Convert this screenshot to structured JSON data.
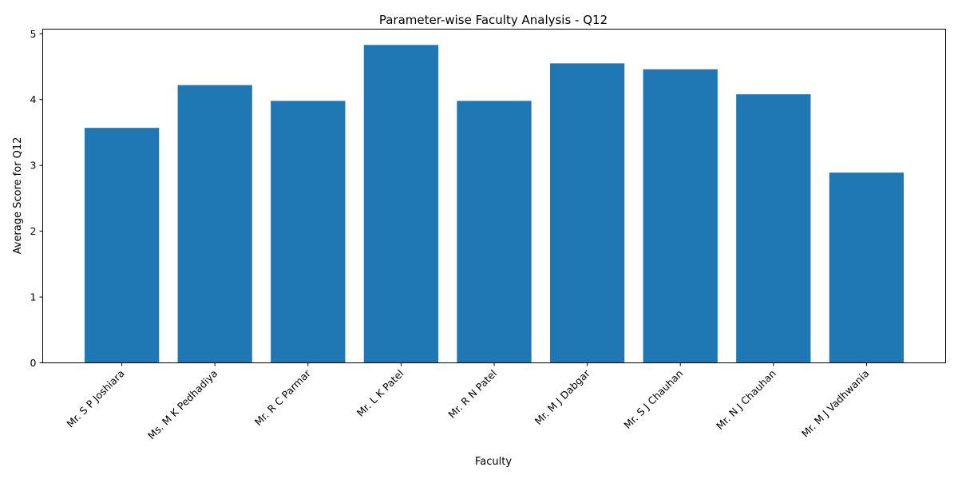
{
  "chart_data": {
    "type": "bar",
    "title": "Parameter-wise Faculty Analysis - Q12",
    "xlabel": "Faculty",
    "ylabel": "Average Score for Q12",
    "categories": [
      "Mr. S P Joshiara",
      "Ms. M K Pedhadiya",
      "Mr. R C Parmar",
      "Mr. L K Patel",
      "Mr. R N Patel",
      "Mr. M J Dabgar",
      "Mr. S J Chauhan",
      "Mr. N J Chauhan",
      "Mr. M J Vadhwania"
    ],
    "values": [
      3.57,
      4.22,
      3.98,
      4.83,
      3.98,
      4.55,
      4.46,
      4.08,
      2.89
    ],
    "ylim": [
      0,
      5.07
    ],
    "yticks": [
      0,
      1,
      2,
      3,
      4,
      5
    ],
    "grid": false,
    "bar_color": "#1f77b4"
  }
}
